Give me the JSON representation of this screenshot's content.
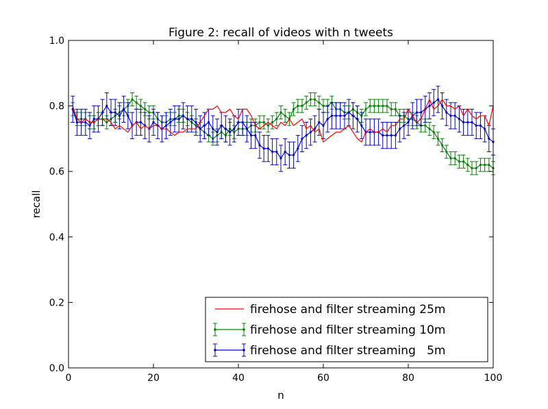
{
  "chart_data": {
    "type": "line",
    "title": "Figure 2: recall of videos with n tweets",
    "xlabel": "n",
    "ylabel": "recall",
    "xlim": [
      0,
      100
    ],
    "ylim": [
      0.0,
      1.0
    ],
    "x_ticks": [
      "0",
      "20",
      "40",
      "60",
      "80",
      "100"
    ],
    "y_ticks": [
      "0.0",
      "0.2",
      "0.4",
      "0.6",
      "0.8",
      "1.0"
    ],
    "grid": false,
    "legend_position": "lower-right",
    "series": [
      {
        "name": "firehose and filter streaming 25m",
        "color": "#ff0000",
        "style": "line",
        "x": [
          1,
          2,
          3,
          4,
          5,
          6,
          7,
          8,
          9,
          10,
          11,
          12,
          13,
          14,
          15,
          16,
          17,
          18,
          19,
          20,
          21,
          22,
          23,
          24,
          25,
          26,
          27,
          28,
          29,
          30,
          31,
          32,
          33,
          34,
          35,
          36,
          37,
          38,
          39,
          40,
          41,
          42,
          43,
          44,
          45,
          46,
          47,
          48,
          49,
          50,
          51,
          52,
          53,
          54,
          55,
          56,
          57,
          58,
          59,
          60,
          61,
          62,
          63,
          64,
          65,
          66,
          67,
          68,
          69,
          70,
          71,
          72,
          73,
          74,
          75,
          76,
          77,
          78,
          79,
          80,
          81,
          82,
          83,
          84,
          85,
          86,
          87,
          88,
          89,
          90,
          91,
          92,
          93,
          94,
          95,
          96,
          97,
          98,
          99,
          100
        ],
        "y": [
          0.8,
          0.76,
          0.75,
          0.76,
          0.75,
          0.75,
          0.76,
          0.76,
          0.76,
          0.75,
          0.73,
          0.74,
          0.73,
          0.72,
          0.74,
          0.75,
          0.73,
          0.74,
          0.73,
          0.74,
          0.74,
          0.73,
          0.73,
          0.72,
          0.71,
          0.72,
          0.72,
          0.73,
          0.73,
          0.73,
          0.75,
          0.77,
          0.79,
          0.79,
          0.8,
          0.78,
          0.78,
          0.79,
          0.77,
          0.76,
          0.79,
          0.79,
          0.77,
          0.74,
          0.73,
          0.74,
          0.75,
          0.74,
          0.73,
          0.75,
          0.74,
          0.76,
          0.74,
          0.75,
          0.76,
          0.73,
          0.74,
          0.72,
          0.73,
          0.69,
          0.7,
          0.71,
          0.72,
          0.72,
          0.73,
          0.74,
          0.72,
          0.7,
          0.69,
          0.72,
          0.73,
          0.72,
          0.72,
          0.73,
          0.72,
          0.74,
          0.74,
          0.76,
          0.76,
          0.79,
          0.77,
          0.75,
          0.76,
          0.79,
          0.82,
          0.79,
          0.8,
          0.82,
          0.8,
          0.8,
          0.79,
          0.8,
          0.77,
          0.79,
          0.77,
          0.76,
          0.77,
          0.77,
          0.74,
          0.8
        ]
      },
      {
        "name": "firehose and filter streaming 10m",
        "color": "#008000",
        "style": "errorbar",
        "x": [
          1,
          2,
          3,
          4,
          5,
          6,
          7,
          8,
          9,
          10,
          11,
          12,
          13,
          14,
          15,
          16,
          17,
          18,
          19,
          20,
          21,
          22,
          23,
          24,
          25,
          26,
          27,
          28,
          29,
          30,
          31,
          32,
          33,
          34,
          35,
          36,
          37,
          38,
          39,
          40,
          41,
          42,
          43,
          44,
          45,
          46,
          47,
          48,
          49,
          50,
          51,
          52,
          53,
          54,
          55,
          56,
          57,
          58,
          59,
          60,
          61,
          62,
          63,
          64,
          65,
          66,
          67,
          68,
          69,
          70,
          71,
          72,
          73,
          74,
          75,
          76,
          77,
          78,
          79,
          80,
          81,
          82,
          83,
          84,
          85,
          86,
          87,
          88,
          89,
          90,
          91,
          92,
          93,
          94,
          95,
          96,
          97,
          98,
          99,
          100
        ],
        "y": [
          0.79,
          0.76,
          0.76,
          0.76,
          0.75,
          0.75,
          0.76,
          0.76,
          0.75,
          0.76,
          0.77,
          0.78,
          0.79,
          0.8,
          0.82,
          0.81,
          0.8,
          0.79,
          0.78,
          0.78,
          0.76,
          0.75,
          0.75,
          0.76,
          0.76,
          0.77,
          0.77,
          0.76,
          0.75,
          0.74,
          0.73,
          0.72,
          0.71,
          0.7,
          0.71,
          0.72,
          0.71,
          0.73,
          0.72,
          0.73,
          0.73,
          0.73,
          0.74,
          0.74,
          0.75,
          0.75,
          0.74,
          0.75,
          0.76,
          0.78,
          0.77,
          0.76,
          0.79,
          0.8,
          0.8,
          0.81,
          0.82,
          0.82,
          0.81,
          0.8,
          0.8,
          0.81,
          0.79,
          0.79,
          0.78,
          0.78,
          0.79,
          0.78,
          0.77,
          0.79,
          0.8,
          0.8,
          0.8,
          0.8,
          0.8,
          0.79,
          0.79,
          0.77,
          0.77,
          0.76,
          0.76,
          0.75,
          0.74,
          0.74,
          0.73,
          0.72,
          0.7,
          0.68,
          0.66,
          0.64,
          0.64,
          0.63,
          0.63,
          0.62,
          0.61,
          0.61,
          0.62,
          0.62,
          0.62,
          0.61
        ],
        "err": 0.02
      },
      {
        "name": "firehose and filter streaming   5m",
        "color": "#0000cc",
        "style": "errorbar",
        "x": [
          1,
          2,
          3,
          4,
          5,
          6,
          7,
          8,
          9,
          10,
          11,
          12,
          13,
          14,
          15,
          16,
          17,
          18,
          19,
          20,
          21,
          22,
          23,
          24,
          25,
          26,
          27,
          28,
          29,
          30,
          31,
          32,
          33,
          34,
          35,
          36,
          37,
          38,
          39,
          40,
          41,
          42,
          43,
          44,
          45,
          46,
          47,
          48,
          49,
          50,
          51,
          52,
          53,
          54,
          55,
          56,
          57,
          58,
          59,
          60,
          61,
          62,
          63,
          64,
          65,
          66,
          67,
          68,
          69,
          70,
          71,
          72,
          73,
          74,
          75,
          76,
          77,
          78,
          79,
          80,
          81,
          82,
          83,
          84,
          85,
          86,
          87,
          88,
          89,
          90,
          91,
          92,
          93,
          94,
          95,
          96,
          97,
          98,
          99,
          100
        ],
        "y": [
          0.79,
          0.75,
          0.75,
          0.75,
          0.74,
          0.76,
          0.76,
          0.78,
          0.8,
          0.78,
          0.78,
          0.77,
          0.79,
          0.77,
          0.74,
          0.75,
          0.75,
          0.74,
          0.73,
          0.75,
          0.74,
          0.73,
          0.74,
          0.75,
          0.76,
          0.76,
          0.77,
          0.76,
          0.76,
          0.75,
          0.73,
          0.74,
          0.75,
          0.73,
          0.72,
          0.74,
          0.73,
          0.72,
          0.73,
          0.75,
          0.75,
          0.73,
          0.71,
          0.71,
          0.68,
          0.67,
          0.67,
          0.66,
          0.66,
          0.64,
          0.66,
          0.65,
          0.65,
          0.67,
          0.7,
          0.71,
          0.72,
          0.73,
          0.75,
          0.74,
          0.76,
          0.77,
          0.77,
          0.77,
          0.77,
          0.78,
          0.77,
          0.76,
          0.74,
          0.72,
          0.72,
          0.72,
          0.72,
          0.71,
          0.71,
          0.71,
          0.71,
          0.73,
          0.74,
          0.75,
          0.77,
          0.78,
          0.78,
          0.79,
          0.8,
          0.81,
          0.82,
          0.8,
          0.78,
          0.77,
          0.77,
          0.76,
          0.75,
          0.75,
          0.75,
          0.74,
          0.74,
          0.73,
          0.7,
          0.69
        ],
        "err": 0.04
      }
    ]
  }
}
